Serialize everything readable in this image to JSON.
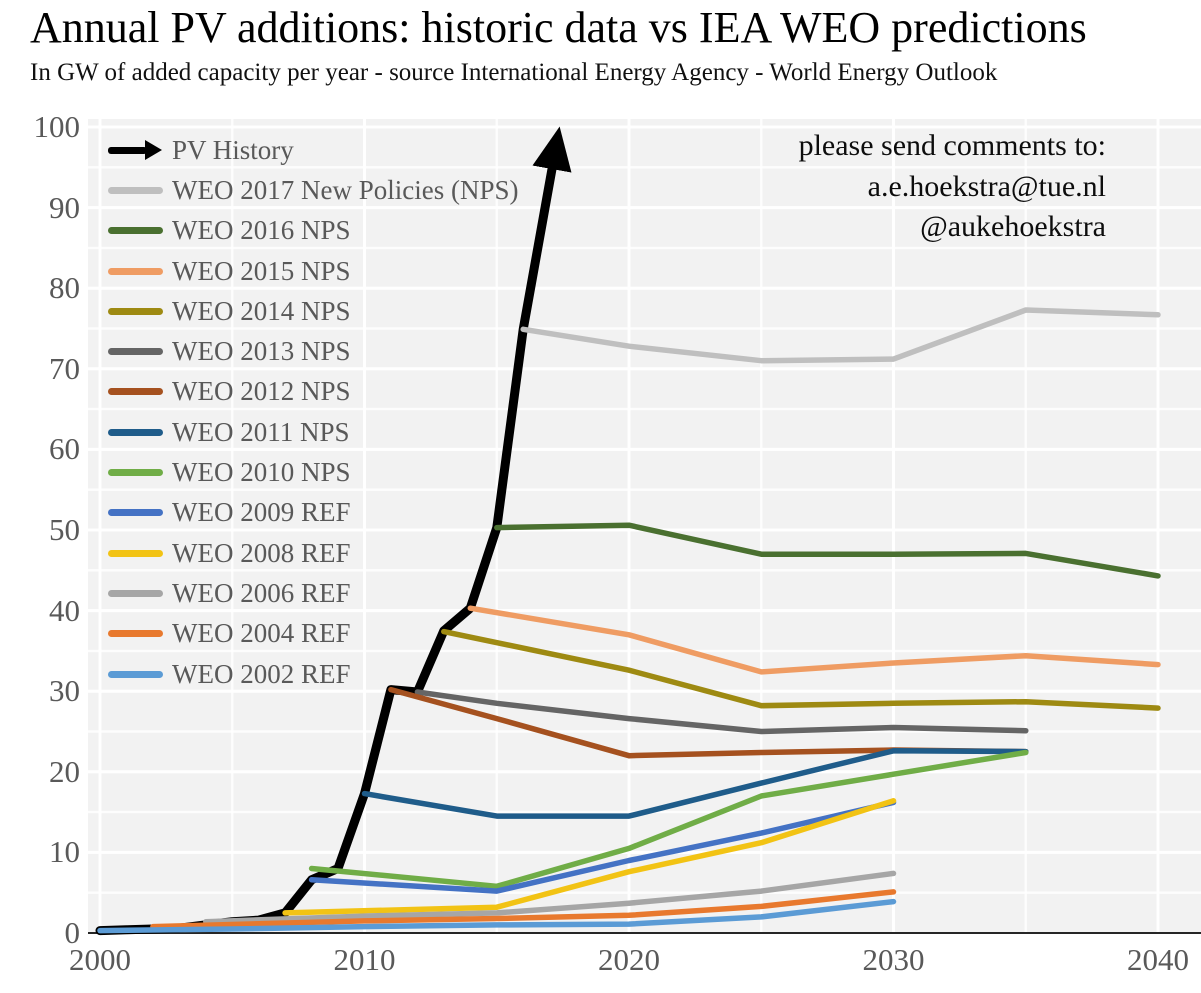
{
  "header": {
    "title": "Annual PV additions: historic data vs IEA WEO predictions",
    "subtitle": "In GW of added capacity per year - source International Energy Agency - World Energy Outlook"
  },
  "annotation": {
    "line1": "please send comments to:",
    "line2": "a.e.hoekstra@tue.nl",
    "line3": "@aukehoekstra"
  },
  "chart_data": {
    "type": "line",
    "title": "Annual PV additions: historic data vs IEA WEO predictions",
    "subtitle": "In GW of added capacity per year - source International Energy Agency - World Energy Outlook",
    "xlabel": "",
    "ylabel": "",
    "xlim": [
      2000,
      2041.6
    ],
    "ylim": [
      0,
      101
    ],
    "x_ticks": [
      2000,
      2010,
      2020,
      2030,
      2040
    ],
    "y_ticks": [
      0,
      10,
      20,
      30,
      40,
      50,
      60,
      70,
      80,
      90,
      100
    ],
    "grid_step": {
      "x": 5,
      "y": 5
    },
    "grid": "on",
    "legend_position": "top-left-inside",
    "plot_bg": "#F2F2F2",
    "grid_color": "#FFFFFF",
    "axis_line_color": "#262626",
    "axis_text_color": "#595959",
    "series": [
      {
        "name": "PV History",
        "color": "#000000",
        "width": 9,
        "style": "arrow",
        "x": [
          2000,
          2001,
          2002,
          2003,
          2004,
          2005,
          2006,
          2007,
          2008,
          2009,
          2010,
          2011,
          2012,
          2013,
          2014,
          2015,
          2016
        ],
        "y": [
          0.3,
          0.4,
          0.5,
          0.6,
          1.0,
          1.4,
          1.6,
          2.5,
          6.6,
          8.0,
          17.3,
          30.2,
          29.9,
          37.5,
          40.3,
          50.3,
          74.9
        ],
        "arrow_to": {
          "x": 2017.1,
          "y": 95
        }
      },
      {
        "name": "WEO 2017 New Policies (NPS)",
        "color": "#BFBFBF",
        "width": 5.5,
        "x": [
          2016,
          2020,
          2025,
          2030,
          2035,
          2040
        ],
        "y": [
          74.9,
          72.8,
          71.0,
          71.2,
          77.3,
          76.7
        ]
      },
      {
        "name": "WEO 2016 NPS",
        "color": "#4A7030",
        "width": 5.5,
        "x": [
          2015,
          2020,
          2025,
          2030,
          2035,
          2040
        ],
        "y": [
          50.3,
          50.6,
          47.0,
          47.0,
          47.1,
          44.3
        ]
      },
      {
        "name": "WEO 2015 NPS",
        "color": "#EF9C63",
        "width": 5.5,
        "x": [
          2014,
          2020,
          2025,
          2030,
          2035,
          2040
        ],
        "y": [
          40.3,
          37.0,
          32.4,
          33.5,
          34.4,
          33.3
        ]
      },
      {
        "name": "WEO 2014 NPS",
        "color": "#9E8A12",
        "width": 5.5,
        "x": [
          2013,
          2020,
          2025,
          2030,
          2035,
          2040
        ],
        "y": [
          37.4,
          32.6,
          28.2,
          28.5,
          28.7,
          27.9
        ]
      },
      {
        "name": "WEO 2013 NPS",
        "color": "#656565",
        "width": 5.5,
        "x": [
          2012,
          2015,
          2020,
          2025,
          2030,
          2035
        ],
        "y": [
          29.9,
          28.5,
          26.6,
          25.0,
          25.5,
          25.1
        ]
      },
      {
        "name": "WEO 2012 NPS",
        "color": "#A5511F",
        "width": 5.5,
        "x": [
          2011,
          2015,
          2020,
          2025,
          2030,
          2035
        ],
        "y": [
          30.2,
          26.6,
          22.0,
          22.4,
          22.7,
          22.5
        ]
      },
      {
        "name": "WEO 2011 NPS",
        "color": "#1F5C8A",
        "width": 5.5,
        "x": [
          2010,
          2015,
          2020,
          2025,
          2030,
          2035
        ],
        "y": [
          17.3,
          14.5,
          14.5,
          18.6,
          22.6,
          22.5
        ]
      },
      {
        "name": "WEO 2010 NPS",
        "color": "#70AD47",
        "width": 5.5,
        "x": [
          2008,
          2015,
          2020,
          2025,
          2030,
          2035
        ],
        "y": [
          8.0,
          5.8,
          10.5,
          17.0,
          19.7,
          22.4
        ]
      },
      {
        "name": "WEO 2009 REF",
        "color": "#4472C4",
        "width": 5.5,
        "x": [
          2008,
          2015,
          2020,
          2025,
          2030
        ],
        "y": [
          6.6,
          5.2,
          9.0,
          12.4,
          16.2
        ]
      },
      {
        "name": "WEO 2008 REF",
        "color": "#F2C314",
        "width": 5.5,
        "x": [
          2007,
          2015,
          2020,
          2025,
          2030
        ],
        "y": [
          2.5,
          3.2,
          7.6,
          11.2,
          16.4
        ]
      },
      {
        "name": "WEO 2006 REF",
        "color": "#A6A6A6",
        "width": 5.5,
        "x": [
          2004,
          2010,
          2015,
          2020,
          2025,
          2030
        ],
        "y": [
          1.4,
          2.1,
          2.5,
          3.7,
          5.2,
          7.4
        ]
      },
      {
        "name": "WEO 2004 REF",
        "color": "#E8792E",
        "width": 5.5,
        "x": [
          2002,
          2010,
          2015,
          2020,
          2025,
          2030
        ],
        "y": [
          0.8,
          1.5,
          1.8,
          2.2,
          3.3,
          5.1
        ]
      },
      {
        "name": "WEO 2002 REF",
        "color": "#5B9BD5",
        "width": 5.5,
        "x": [
          2000,
          2005,
          2010,
          2015,
          2020,
          2025,
          2030
        ],
        "y": [
          0.3,
          0.5,
          0.8,
          1.0,
          1.1,
          2.0,
          3.9
        ]
      }
    ]
  }
}
